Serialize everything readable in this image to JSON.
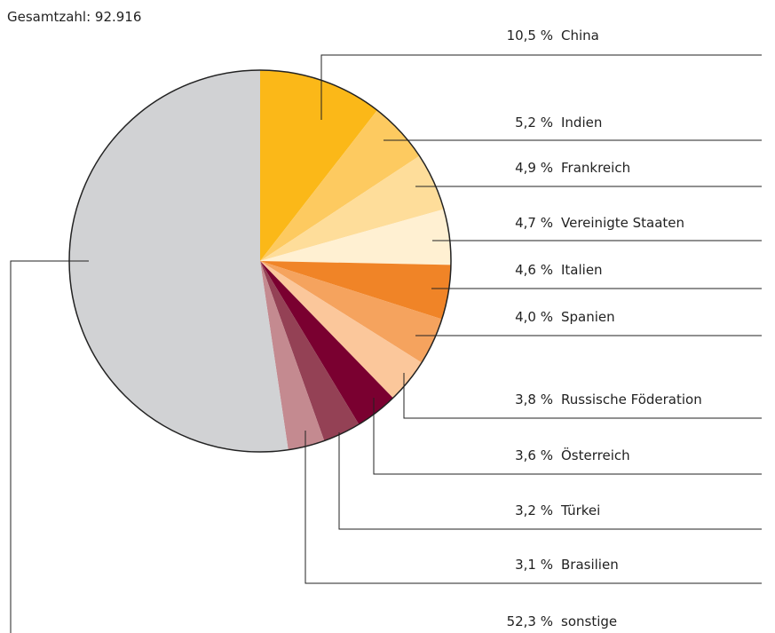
{
  "chart_data": {
    "type": "pie",
    "subtitle": "Gesamtzahl: 92.916",
    "categories": [
      "China",
      "Indien",
      "Frankreich",
      "Vereinigte Staaten",
      "Italien",
      "Spanien",
      "Russische Föderation",
      "Österreich",
      "Türkei",
      "Brasilien",
      "sonstige"
    ],
    "values": [
      10.5,
      5.2,
      4.9,
      4.7,
      4.6,
      4.0,
      3.8,
      3.6,
      3.2,
      3.1,
      52.3
    ],
    "value_labels": [
      "10,5 %",
      "5,2 %",
      "4,9 %",
      "4,7 %",
      "4,6 %",
      "4,0 %",
      "3,8 %",
      "3,6 %",
      "3,2 %",
      "3,1 %",
      "52,3 %"
    ],
    "colors": [
      "#fbb818",
      "#fdca60",
      "#fedd9a",
      "#fff0d2",
      "#f08427",
      "#f5a35e",
      "#fbc79b",
      "#7a0030",
      "#944155",
      "#c48a90",
      "#d1d2d4"
    ]
  }
}
